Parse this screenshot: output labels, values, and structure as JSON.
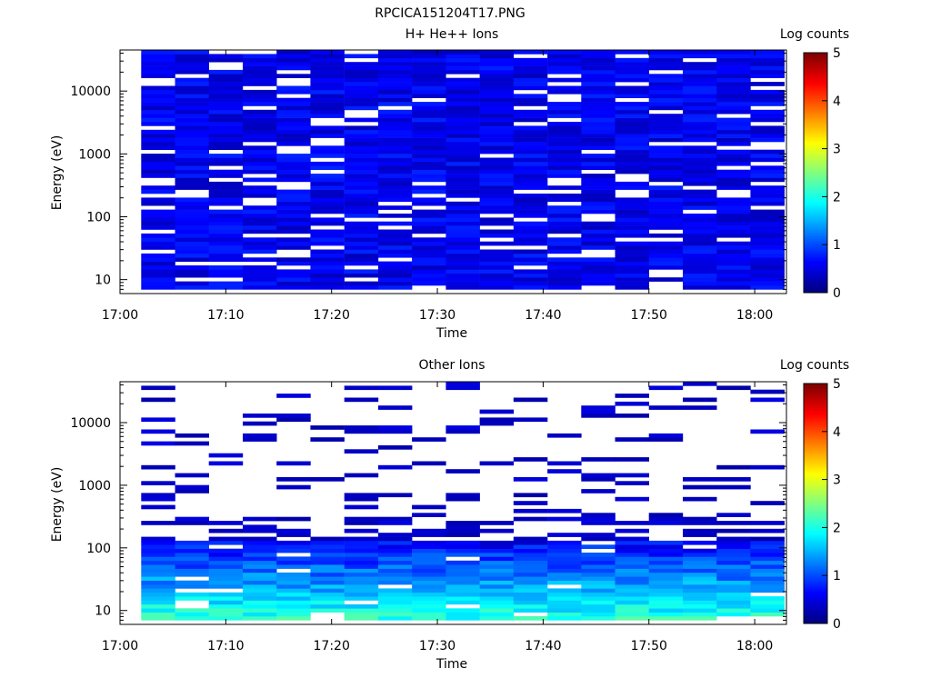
{
  "page_title": "RPCICA151204T17.PNG",
  "colorbar": {
    "label": "Log counts",
    "ticks": [
      "0",
      "1",
      "2",
      "3",
      "4",
      "5"
    ],
    "range": [
      0,
      5
    ],
    "colormap": "jet"
  },
  "chart_data": [
    {
      "type": "heatmap",
      "title": "H+ He++ Ions",
      "xlabel": "Time",
      "ylabel": "Energy (eV)",
      "x_ticks": [
        "17:00",
        "17:10",
        "17:20",
        "17:30",
        "17:40",
        "17:50",
        "18:00"
      ],
      "y_ticks": [
        "10",
        "100",
        "1000",
        "10000"
      ],
      "y_scale": "log",
      "ylim": [
        6,
        45000
      ],
      "xlim": [
        "17:00",
        "18:03"
      ],
      "time_bins": 19,
      "energy_bins": 60,
      "time_start": "17:02",
      "time_bin_minutes": 3.2,
      "density": 0.86,
      "level_mean": 0.55,
      "level_spread": 0.25,
      "low_energy_boost": 0.0,
      "colormap_range": [
        0,
        5
      ]
    },
    {
      "type": "heatmap",
      "title": "Other Ions",
      "xlabel": "Time",
      "ylabel": "Energy (eV)",
      "x_ticks": [
        "17:00",
        "17:10",
        "17:20",
        "17:30",
        "17:40",
        "17:50",
        "18:00"
      ],
      "y_ticks": [
        "10",
        "100",
        "1000",
        "10000"
      ],
      "y_scale": "log",
      "ylim": [
        6,
        45000
      ],
      "xlim": [
        "17:00",
        "18:03"
      ],
      "time_bins": 19,
      "energy_bins": 60,
      "time_start": "17:02",
      "time_bin_minutes": 3.2,
      "density": 0.18,
      "level_mean": 0.35,
      "level_spread": 0.15,
      "low_energy_boost": 1.6,
      "colormap_range": [
        0,
        5
      ]
    }
  ]
}
